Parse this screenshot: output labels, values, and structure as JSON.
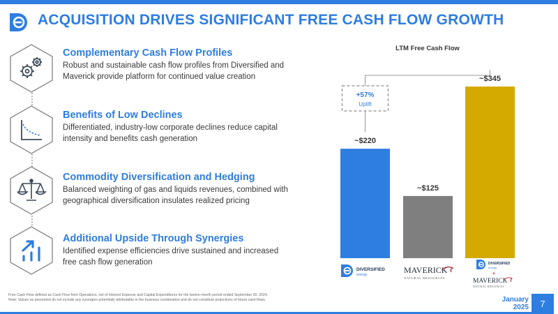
{
  "header": {
    "title": "ACQUISITION DRIVES SIGNIFICANT FREE CASH FLOW GROWTH"
  },
  "features": [
    {
      "icon": "gears-icon",
      "title": "Complementary Cash Flow Profiles",
      "body": "Robust and sustainable cash flow profiles from Diversified and Maverick provide platform for continued value creation"
    },
    {
      "icon": "decline-curve-icon",
      "title": "Benefits of Low Declines",
      "body": "Differentiated, industry-low corporate declines reduce capital intensity and benefits cash generation"
    },
    {
      "icon": "balance-scale-icon",
      "title": "Commodity Diversification and Hedging",
      "body": "Balanced weighting of gas and liquids revenues, combined with geographical diversification insulates realized pricing"
    },
    {
      "icon": "growth-arrow-icon",
      "title": "Additional Upside Through Synergies",
      "body": "Identified expense efficiencies drive sustained and increased free cash flow generation"
    }
  ],
  "chart_data": {
    "type": "bar",
    "title": "LTM Free Cash Flow",
    "categories": [
      "Diversified",
      "Maverick",
      "Diversified + Maverick"
    ],
    "values": [
      220,
      125,
      345
    ],
    "value_labels": [
      "~$220",
      "~$125",
      "~$345"
    ],
    "colors": [
      "#2e7de1",
      "#7f7f7f",
      "#d4a900"
    ],
    "ylim": [
      0,
      345
    ],
    "annotation": {
      "value": "+57%",
      "label": "Uplift"
    },
    "grid": false,
    "legend": "none"
  },
  "logos": {
    "diversified_name": "DIVERSIFIED",
    "diversified_sub": "energy",
    "maverick_name": "MAVERICK",
    "maverick_sub": "NATURAL RESOURCES",
    "plus": "+"
  },
  "footer": {
    "footnote_1": "Free Cash Flow defined as Cash Flow from Operations, net of Interest Expense and Capital Expenditures for the twelve-month period ended September 30, 2024.",
    "footnote_2": "Note: Values as presented do not include any synergies potentially attributable to the business combination and do not constitute projections of future cash flows.",
    "date_line1": "January",
    "date_line2": "2025",
    "page_number": "7"
  },
  "colors": {
    "accent": "#2e7de1",
    "maverick": "#7f7f7f",
    "combined": "#d4a900"
  }
}
